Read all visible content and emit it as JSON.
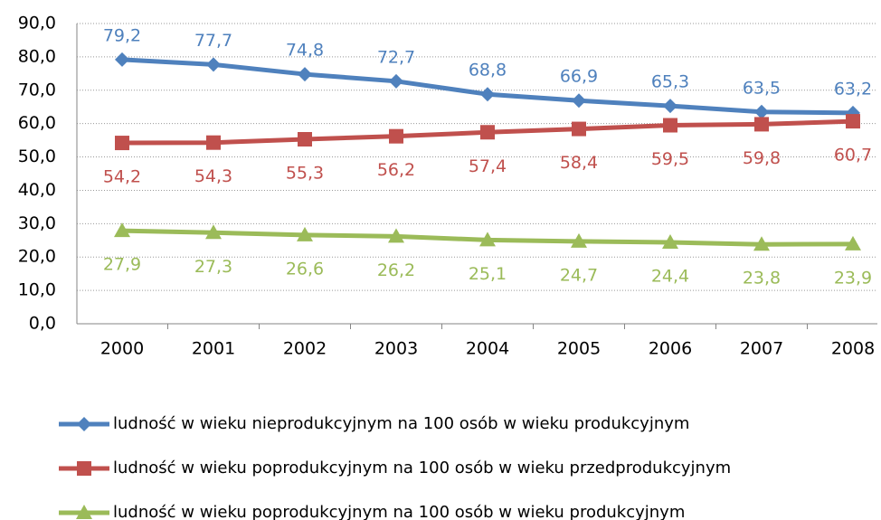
{
  "chart_data": {
    "type": "line",
    "categories": [
      "2000",
      "2001",
      "2002",
      "2003",
      "2004",
      "2005",
      "2006",
      "2007",
      "2008"
    ],
    "ylim": [
      0,
      90
    ],
    "yticks": [
      {
        "value": 0,
        "label": "0,0"
      },
      {
        "value": 10,
        "label": "10,0"
      },
      {
        "value": 20,
        "label": "20,0"
      },
      {
        "value": 30,
        "label": "30,0"
      },
      {
        "value": 40,
        "label": "40,0"
      },
      {
        "value": 50,
        "label": "50,0"
      },
      {
        "value": 60,
        "label": "60,0"
      },
      {
        "value": 70,
        "label": "70,0"
      },
      {
        "value": 80,
        "label": "80,0"
      },
      {
        "value": 90,
        "label": "90,0"
      }
    ],
    "grid": true,
    "legend": "bottom",
    "series": [
      {
        "name": "ludność w wieku nieprodukcyjnym na 100 osób w wieku produkcyjnym",
        "color": "#4f81bd",
        "marker": "diamond",
        "values": [
          79.2,
          77.7,
          74.8,
          72.7,
          68.8,
          66.9,
          65.3,
          63.5,
          63.2
        ],
        "value_labels": [
          "79,2",
          "77,7",
          "74,8",
          "72,7",
          "68,8",
          "66,9",
          "65,3",
          "63,5",
          "63,2"
        ]
      },
      {
        "name": "ludność w wieku poprodukcyjnym na 100 osób w wieku przedprodukcyjnym",
        "color": "#c0504d",
        "marker": "square",
        "values": [
          54.2,
          54.3,
          55.3,
          56.2,
          57.4,
          58.4,
          59.5,
          59.8,
          60.7
        ],
        "value_labels": [
          "54,2",
          "54,3",
          "55,3",
          "56,2",
          "57,4",
          "58,4",
          "59,5",
          "59,8",
          "60,7"
        ]
      },
      {
        "name": "ludność w wieku poprodukcyjnym na 100 osób w wieku produkcyjnym",
        "color": "#9bbb59",
        "marker": "triangle",
        "values": [
          27.9,
          27.3,
          26.6,
          26.2,
          25.1,
          24.7,
          24.4,
          23.8,
          23.9
        ],
        "value_labels": [
          "27,9",
          "27,3",
          "26,6",
          "26,2",
          "25,1",
          "24,7",
          "24,4",
          "23,8",
          "23,9"
        ]
      }
    ]
  }
}
